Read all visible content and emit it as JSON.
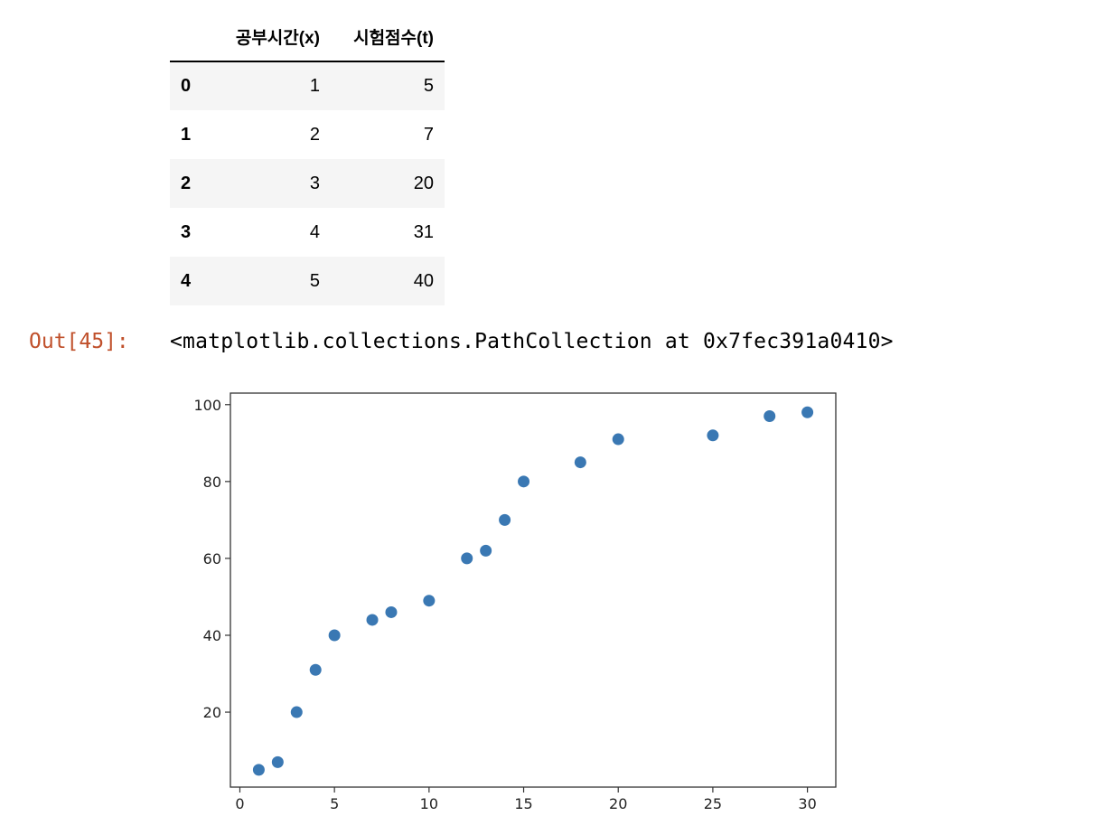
{
  "table": {
    "columns": [
      "공부시간(x)",
      "시험점수(t)"
    ],
    "rows": [
      {
        "index": "0",
        "x": "1",
        "t": "5"
      },
      {
        "index": "1",
        "x": "2",
        "t": "7"
      },
      {
        "index": "2",
        "x": "3",
        "t": "20"
      },
      {
        "index": "3",
        "x": "4",
        "t": "31"
      },
      {
        "index": "4",
        "x": "5",
        "t": "40"
      }
    ]
  },
  "output": {
    "prompt": "Out[45]:",
    "text": "<matplotlib.collections.PathCollection at 0x7fec391a0410>"
  },
  "colors": {
    "prompt": "#c0502b",
    "marker": "#3a78b3",
    "table_stripe": "#f5f5f5"
  },
  "chart_data": {
    "type": "scatter",
    "x": [
      1,
      2,
      3,
      4,
      5,
      7,
      8,
      10,
      12,
      13,
      14,
      15,
      18,
      20,
      25,
      28,
      30
    ],
    "y": [
      5,
      7,
      20,
      31,
      40,
      44,
      46,
      49,
      60,
      62,
      70,
      80,
      85,
      91,
      92,
      97,
      98
    ],
    "xlim": [
      -0.5,
      31.5
    ],
    "ylim": [
      0.5,
      103
    ],
    "xticks": [
      0,
      5,
      10,
      15,
      20,
      25,
      30
    ],
    "yticks": [
      20,
      40,
      60,
      80,
      100
    ],
    "grid": false,
    "title": "",
    "xlabel": "",
    "ylabel": ""
  }
}
